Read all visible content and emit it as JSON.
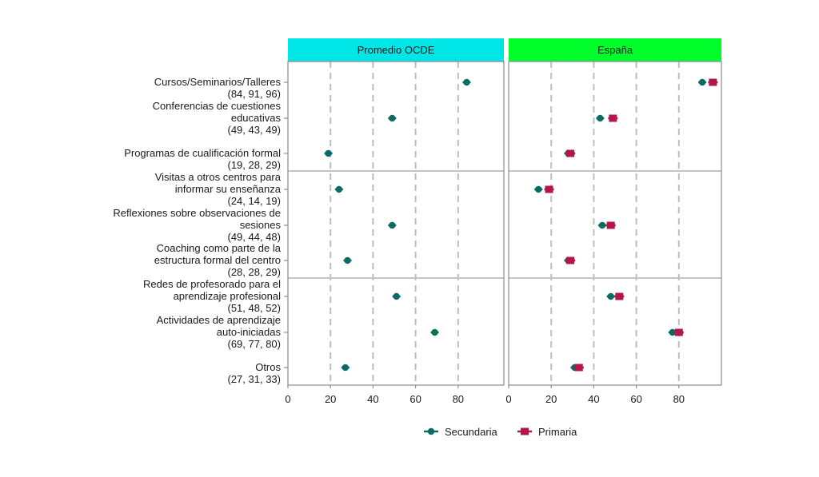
{
  "chart_data": {
    "type": "scatter",
    "title": "",
    "xlabel": "",
    "ylabel": "",
    "xlim": [
      0,
      100
    ],
    "x_ticks": [
      0,
      20,
      40,
      60,
      80
    ],
    "grid": "vertical dashed",
    "legend_position": "bottom",
    "panels": [
      {
        "name": "Promedio OCDE",
        "color": "#00E5E5"
      },
      {
        "name": "España",
        "color": "#00FF2A"
      }
    ],
    "categories": [
      {
        "label": [
          "Cursos/Seminarios/Talleres",
          "(84, 91, 96)"
        ],
        "group": 1
      },
      {
        "label": [
          "Conferencias de cuestiones",
          "educativas",
          "(49, 43, 49)"
        ],
        "group": 1
      },
      {
        "label": [
          "Programas de cualificación formal",
          "(19, 28, 29)"
        ],
        "group": 1
      },
      {
        "label": [
          "Visitas a otros centros para",
          "informar su enseñanza",
          "(24, 14, 19)"
        ],
        "group": 2
      },
      {
        "label": [
          "Reflexiones sobre observaciones de",
          "sesiones",
          "(49, 44, 48)"
        ],
        "group": 2
      },
      {
        "label": [
          "Coaching como parte de la",
          "estructura formal del centro",
          "(28, 28, 29)"
        ],
        "group": 2
      },
      {
        "label": [
          "Redes de profesorado para el",
          "aprendizaje profesional",
          "(51, 48, 52)"
        ],
        "group": 3
      },
      {
        "label": [
          "Actividades de aprendizaje",
          "auto-iniciadas",
          "(69, 77, 80)"
        ],
        "group": 3
      },
      {
        "label": [
          "Otros",
          "(27, 31, 33)"
        ],
        "group": 3
      }
    ],
    "series": [
      {
        "name": "Secundaria",
        "panel": "Promedio OCDE",
        "marker": "circle",
        "color": "#0B6B63",
        "values": [
          84,
          49,
          19,
          24,
          49,
          28,
          51,
          69,
          27
        ]
      },
      {
        "name": "Secundaria",
        "panel": "España",
        "marker": "circle",
        "color": "#0B6B63",
        "values": [
          91,
          43,
          28,
          14,
          44,
          28,
          48,
          77,
          31
        ]
      },
      {
        "name": "Primaria",
        "panel": "España",
        "marker": "square",
        "color": "#B5154B",
        "values": [
          96,
          49,
          29,
          19,
          48,
          29,
          52,
          80,
          33
        ]
      }
    ],
    "legend": [
      {
        "label": "Secundaria",
        "marker": "circle",
        "color": "#0B6B63"
      },
      {
        "label": "Primaria",
        "marker": "square",
        "color": "#B5154B"
      }
    ]
  }
}
